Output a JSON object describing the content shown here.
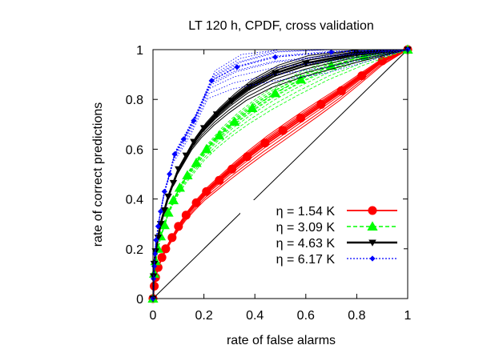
{
  "chart_data": {
    "type": "line",
    "title": "LT 120 h, CPDF, cross validation",
    "xlabel": "rate of false alarms",
    "ylabel": "rate of correct predictions",
    "xlim": [
      0,
      1
    ],
    "ylim": [
      0,
      1
    ],
    "xticks": [
      "0",
      "0.2",
      "0.4",
      "0.6",
      "0.8",
      "1"
    ],
    "yticks": [
      "0",
      "0.2",
      "0.4",
      "0.6",
      "0.8",
      "1"
    ],
    "grid": false,
    "legend_position": "bottom-right",
    "diagonal_reference": true,
    "series": [
      {
        "name": "η = 1.54 K",
        "color": "#ff0000",
        "line_style": "solid",
        "marker": "circle",
        "ensemble_band": [
          0.06,
          0.03
        ],
        "x": [
          0,
          0.005,
          0.01,
          0.02,
          0.035,
          0.05,
          0.075,
          0.1,
          0.13,
          0.17,
          0.21,
          0.26,
          0.31,
          0.37,
          0.44,
          0.51,
          0.58,
          0.66,
          0.74,
          0.82,
          0.9,
          1.0
        ],
        "y": [
          0,
          0.05,
          0.085,
          0.125,
          0.165,
          0.2,
          0.245,
          0.29,
          0.335,
          0.385,
          0.43,
          0.475,
          0.52,
          0.57,
          0.625,
          0.675,
          0.725,
          0.78,
          0.835,
          0.895,
          0.955,
          1.0
        ]
      },
      {
        "name": "η = 3.09 K",
        "color": "#00ff00",
        "line_style": "dashed",
        "marker": "triangle-up",
        "ensemble_band": [
          0.09,
          0.04
        ],
        "x": [
          0,
          0.005,
          0.01,
          0.02,
          0.03,
          0.045,
          0.06,
          0.08,
          0.105,
          0.135,
          0.17,
          0.21,
          0.26,
          0.32,
          0.39,
          0.48,
          0.58,
          0.7,
          0.83,
          1.0
        ],
        "y": [
          0,
          0.1,
          0.15,
          0.2,
          0.25,
          0.295,
          0.345,
          0.395,
          0.445,
          0.495,
          0.545,
          0.6,
          0.655,
          0.71,
          0.765,
          0.825,
          0.88,
          0.935,
          0.975,
          1.0
        ]
      },
      {
        "name": "η = 4.63 K",
        "color": "#000000",
        "line_style": "solid-bold",
        "marker": "triangle-down",
        "ensemble_band": [
          0.1,
          0.035
        ],
        "x": [
          0,
          0.002,
          0.005,
          0.01,
          0.02,
          0.03,
          0.045,
          0.06,
          0.08,
          0.1,
          0.13,
          0.16,
          0.2,
          0.25,
          0.31,
          0.38,
          0.48,
          0.6,
          0.8,
          1.0
        ],
        "y": [
          0,
          0.09,
          0.14,
          0.19,
          0.245,
          0.3,
          0.355,
          0.41,
          0.465,
          0.52,
          0.575,
          0.63,
          0.685,
          0.74,
          0.795,
          0.85,
          0.905,
          0.945,
          0.985,
          1.0
        ]
      },
      {
        "name": "η = 6.17 K",
        "color": "#0000ff",
        "line_style": "dotted",
        "marker": "diamond",
        "ensemble_band": [
          0.14,
          0.06
        ],
        "x": [
          0,
          0.002,
          0.005,
          0.008,
          0.012,
          0.02,
          0.03,
          0.045,
          0.065,
          0.085,
          0.12,
          0.16,
          0.23,
          0.33,
          0.48,
          0.7,
          1.0
        ],
        "y": [
          0,
          0.08,
          0.13,
          0.18,
          0.235,
          0.29,
          0.35,
          0.43,
          0.5,
          0.58,
          0.64,
          0.715,
          0.875,
          0.93,
          0.97,
          0.99,
          1.0
        ]
      }
    ]
  }
}
